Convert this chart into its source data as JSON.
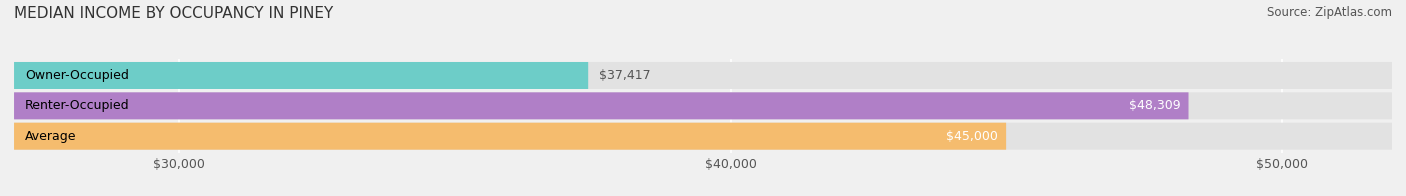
{
  "title": "MEDIAN INCOME BY OCCUPANCY IN PINEY",
  "source": "Source: ZipAtlas.com",
  "categories": [
    "Owner-Occupied",
    "Renter-Occupied",
    "Average"
  ],
  "values": [
    37417,
    48309,
    45000
  ],
  "bar_colors": [
    "#6dcdc8",
    "#b07fc7",
    "#f5bc6e"
  ],
  "bar_labels": [
    "$37,417",
    "$48,309",
    "$45,000"
  ],
  "xlim_min": 27000,
  "xlim_max": 52000,
  "x_ticks": [
    30000,
    40000,
    50000
  ],
  "x_tick_labels": [
    "$30,000",
    "$40,000",
    "$50,000"
  ],
  "bar_height": 0.55,
  "bg_color": "#f0f0f0",
  "bar_bg_color": "#e2e2e2",
  "title_fontsize": 11,
  "source_fontsize": 8.5,
  "label_fontsize": 9,
  "tick_fontsize": 9,
  "cat_fontsize": 9
}
